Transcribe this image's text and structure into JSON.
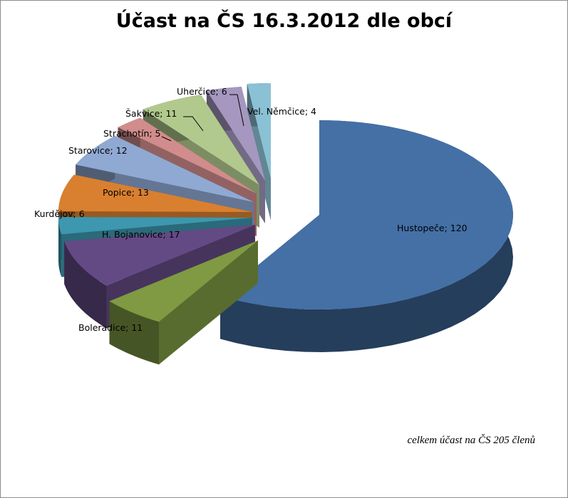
{
  "chart_data": {
    "type": "pie",
    "variant": "exploded-3d",
    "title": "Účast na ČS 16.3.2012 dle obcí",
    "slices": [
      {
        "name": "Hustopeče",
        "value": 120,
        "label": "Hustopeče; 120",
        "color": "#4470a6"
      },
      {
        "name": "Boleradice",
        "value": 11,
        "label": "Boleradice; 11",
        "color": "#7f9a43"
      },
      {
        "name": "H. Bojanovice",
        "value": 17,
        "label": "H. Bojanovice; 17",
        "color": "#644a85"
      },
      {
        "name": "Kurdějov",
        "value": 6,
        "label": "Kurdějov; 6",
        "color": "#3d97ae"
      },
      {
        "name": "Popice",
        "value": 13,
        "label": "Popice; 13",
        "color": "#d98030"
      },
      {
        "name": "Starovice",
        "value": 12,
        "label": "Starovice; 12",
        "color": "#8fa9d3"
      },
      {
        "name": "Strachotín",
        "value": 5,
        "label": "Strachotín; 5",
        "color": "#d18c8c"
      },
      {
        "name": "Šakvice",
        "value": 11,
        "label": "Šakvice; 11",
        "color": "#b2c98d"
      },
      {
        "name": "Uherčice",
        "value": 6,
        "label": "Uherčice; 6",
        "color": "#a597c0"
      },
      {
        "name": "Vel. Němčice",
        "value": 4,
        "label": "Vel. Němčice; 4",
        "color": "#8bc1d4"
      }
    ],
    "total": 205,
    "footnote": "celkem účast na ČS 205 členů",
    "legend": "none"
  }
}
